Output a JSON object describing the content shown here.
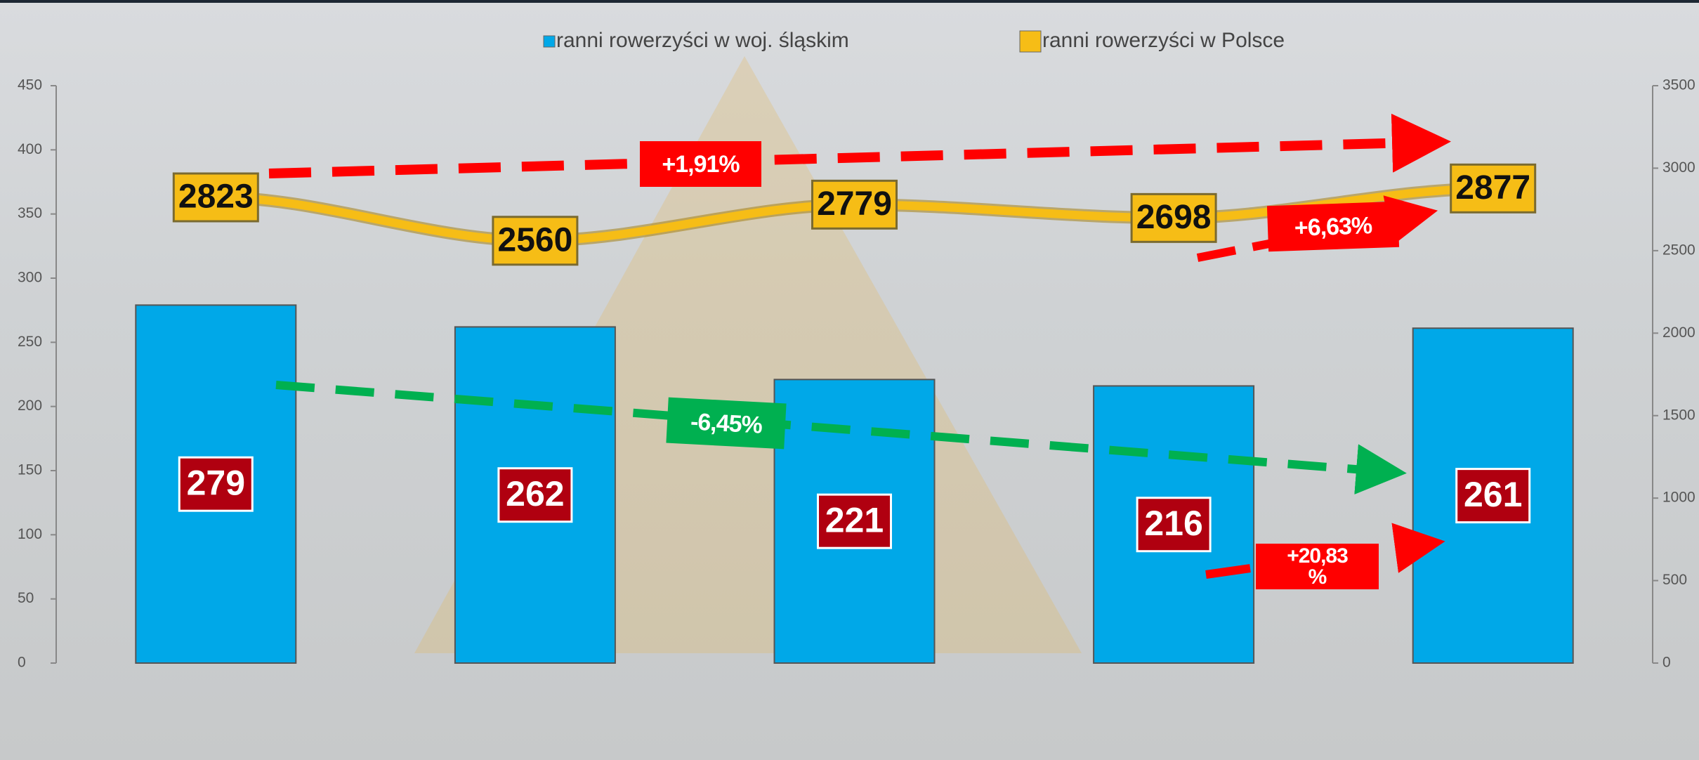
{
  "chart_data": {
    "type": "bar",
    "categories": [
      null,
      null,
      null,
      null,
      null
    ],
    "series": [
      {
        "name": "ranni rowerzyści w woj. śląskim",
        "type": "bar",
        "color": "#00a8e8",
        "values": [
          279,
          262,
          221,
          216,
          261
        ]
      },
      {
        "name": "ranni rowerzyści w Polsce",
        "type": "line",
        "axis": "y2",
        "color": "#f6bd16",
        "values": [
          2823,
          2560,
          2779,
          2698,
          2877
        ]
      }
    ],
    "ylim": [
      0,
      450
    ],
    "yticks": [
      0,
      50,
      100,
      150,
      200,
      250,
      300,
      350,
      400,
      450
    ],
    "y2lim": [
      0,
      3500
    ],
    "y2ticks": [
      0,
      500,
      1000,
      1500,
      2000,
      2500,
      3000,
      3500
    ],
    "legend": "top",
    "annotations": [
      "+1,91%",
      "+6,63%",
      "-6,45%",
      "+20,83 %"
    ]
  }
}
